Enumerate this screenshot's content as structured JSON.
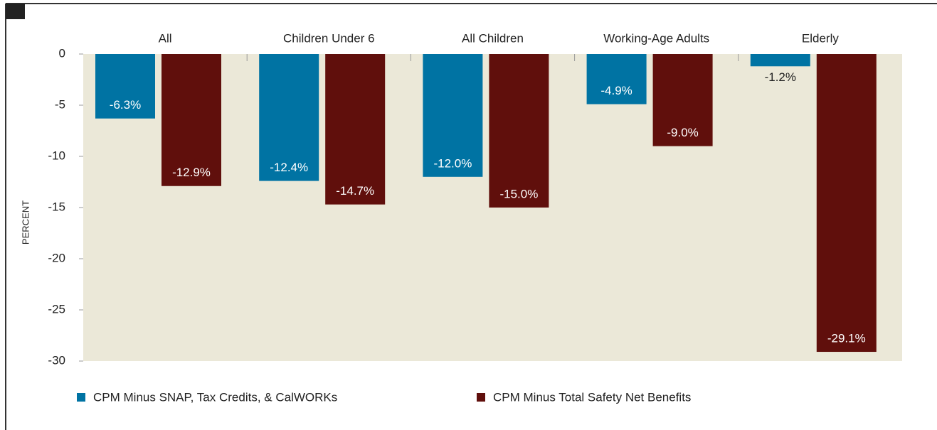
{
  "chart_data": {
    "type": "bar",
    "y_label": "PERCENT",
    "categories": [
      "All",
      "Children Under 6",
      "All Children",
      "Working-Age Adults",
      "Elderly"
    ],
    "series": [
      {
        "name": "CPM Minus SNAP, Tax Credits, & CalWORKs",
        "color": "#0073a3",
        "values": [
          -6.3,
          -12.4,
          -12.0,
          -4.9,
          -1.2
        ],
        "value_labels": [
          "-6.3%",
          "-12.4%",
          "-12.0%",
          "-4.9%",
          "-1.2%"
        ]
      },
      {
        "name": "CPM Minus Total Safety Net Benefits",
        "color": "#600f0c",
        "values": [
          -12.9,
          -14.7,
          -15.0,
          -9.0,
          -29.1
        ],
        "value_labels": [
          "-12.9%",
          "-14.7%",
          "-15.0%",
          "-9.0%",
          "-29.1%"
        ]
      }
    ],
    "ylim": [
      -30,
      0
    ],
    "yticks": [
      0,
      -5,
      -10,
      -15,
      -20,
      -25,
      -30
    ]
  }
}
